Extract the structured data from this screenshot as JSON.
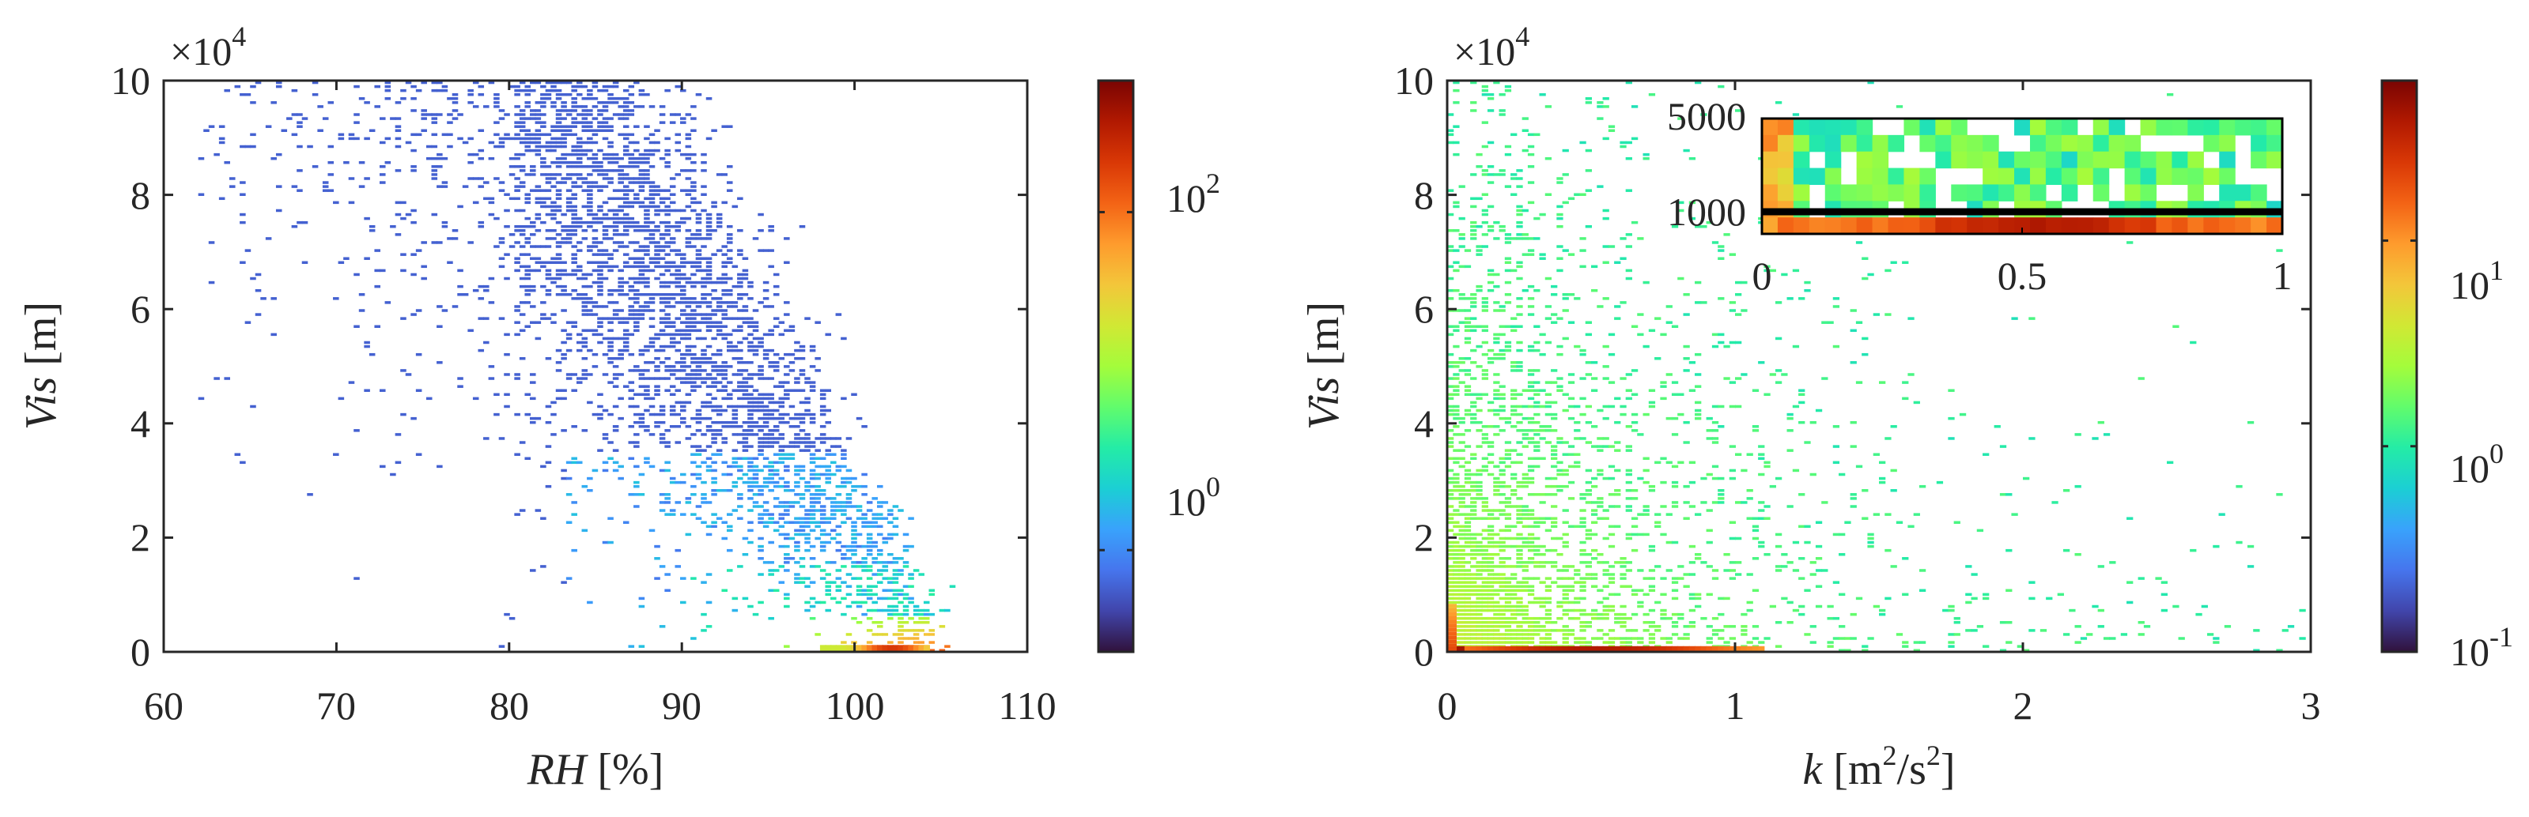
{
  "colors": {
    "colormap": [
      "#30123b",
      "#4145ab",
      "#4675ed",
      "#39a2fc",
      "#1bcfd4",
      "#24eca6",
      "#61fc6c",
      "#a4fc3b",
      "#d1e834",
      "#f3c63a",
      "#fe9b2d",
      "#f36315",
      "#d93806",
      "#b11901",
      "#7a0402"
    ],
    "axes": "#262626",
    "background": "#ffffff"
  },
  "chart_data": [
    {
      "type": "heatmap",
      "xlabel": "RH [%]",
      "ylabel": "Vis [m]",
      "xlim": [
        60,
        110
      ],
      "ylim": [
        0,
        100000
      ],
      "x_ticks": [
        "60",
        "70",
        "80",
        "90",
        "100",
        "110"
      ],
      "y_ticks": [
        "0",
        "2",
        "4",
        "6",
        "8",
        "10"
      ],
      "y_exponent_label": "×10",
      "y_exponent": "4",
      "colorbar": {
        "scale": "log",
        "range": [
          0.25,
          600
        ],
        "ticks": [
          {
            "value": 1,
            "base": "10",
            "exp": "0"
          },
          {
            "value": 100,
            "base": "10",
            "exp": "2"
          }
        ]
      },
      "density_regions": [
        {
          "rh": [
            96,
            104
          ],
          "vis": [
            0,
            5000
          ],
          "count": 30
        },
        {
          "rh": [
            92,
            100
          ],
          "vis": [
            5000,
            15000
          ],
          "count": 6
        },
        {
          "rh": [
            85,
            95
          ],
          "vis": [
            10000,
            30000
          ],
          "count": 2.5
        },
        {
          "rh": [
            80,
            95
          ],
          "vis": [
            20000,
            50000
          ],
          "count": 1
        },
        {
          "rh": [
            75,
            95
          ],
          "vis": [
            40000,
            90000
          ],
          "count": 0.7
        },
        {
          "rh": [
            63,
            92
          ],
          "vis": [
            85000,
            100000
          ],
          "count": 0.6
        }
      ]
    },
    {
      "type": "heatmap",
      "xlabel": "k [m²/s²]",
      "ylabel": "Vis [m]",
      "xlim": [
        0,
        3
      ],
      "ylim": [
        0,
        100000
      ],
      "x_ticks": [
        "0",
        "1",
        "2",
        "3"
      ],
      "y_ticks": [
        "0",
        "2",
        "4",
        "6",
        "8",
        "10"
      ],
      "y_exponent_label": "×10",
      "y_exponent": "4",
      "colorbar": {
        "scale": "log",
        "range": [
          0.1,
          60
        ],
        "ticks": [
          {
            "value": 0.1,
            "base": "10",
            "exp": "-1"
          },
          {
            "value": 1,
            "base": "10",
            "exp": "0"
          },
          {
            "value": 10,
            "base": "10",
            "exp": "1"
          }
        ]
      },
      "density_regions": [
        {
          "k": [
            0,
            0.8
          ],
          "vis": [
            0,
            1000
          ],
          "count": 30
        },
        {
          "k": [
            0,
            0.1
          ],
          "vis": [
            0,
            8000
          ],
          "count": 15
        },
        {
          "k": [
            0,
            1.2
          ],
          "vis": [
            1000,
            30000
          ],
          "count": 2.5
        },
        {
          "k": [
            0,
            0.5
          ],
          "vis": [
            30000,
            100000
          ],
          "count": 1.2
        },
        {
          "k": [
            1,
            3
          ],
          "vis": [
            0,
            20000
          ],
          "count": 0.9
        }
      ],
      "inset": {
        "xlim": [
          0,
          1
        ],
        "ylim": [
          0,
          6000
        ],
        "x_ticks": [
          "0",
          "0.5",
          "1"
        ],
        "y_ticks": [
          "1000",
          "5000"
        ],
        "threshold_line": 1000
      }
    }
  ]
}
